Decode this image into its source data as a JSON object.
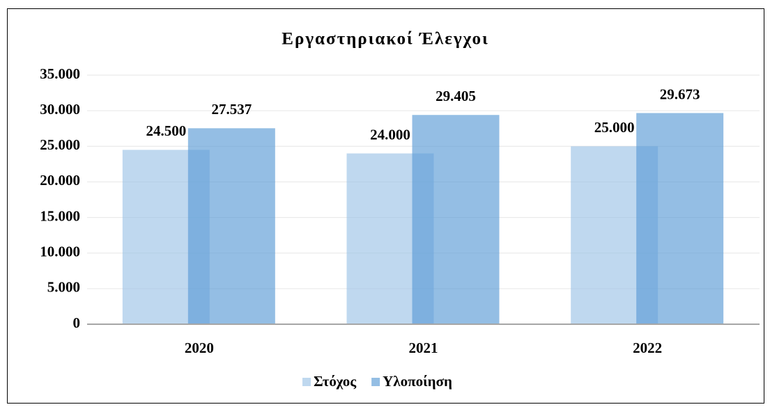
{
  "chart_data": {
    "type": "bar",
    "title": "Εργαστηριακοί Έλεγχοι",
    "categories": [
      "2020",
      "2021",
      "2022"
    ],
    "series": [
      {
        "name": "Στόχος",
        "color": "#9dc3e6",
        "values": [
          24500,
          24000,
          25000
        ],
        "value_labels": [
          "24.500",
          "24.000",
          "25.000"
        ]
      },
      {
        "name": "Υλοποίηση",
        "color": "#5b9bd5",
        "values": [
          27537,
          29405,
          29673
        ],
        "value_labels": [
          "27.537",
          "29.405",
          "29.673"
        ]
      }
    ],
    "ylim": [
      0,
      35000
    ],
    "yticks": [
      0,
      {
        "value": 5000,
        "label": "5.000"
      },
      {
        "value": 10000,
        "label": "10.000"
      },
      {
        "value": 15000,
        "label": "15.000"
      },
      {
        "value": 20000,
        "label": "20.000"
      },
      {
        "value": 25000,
        "label": "25.000"
      },
      {
        "value": 30000,
        "label": "30.000"
      },
      {
        "value": 35000,
        "label": "35.000"
      }
    ],
    "grid": true,
    "legend": "bottom"
  }
}
